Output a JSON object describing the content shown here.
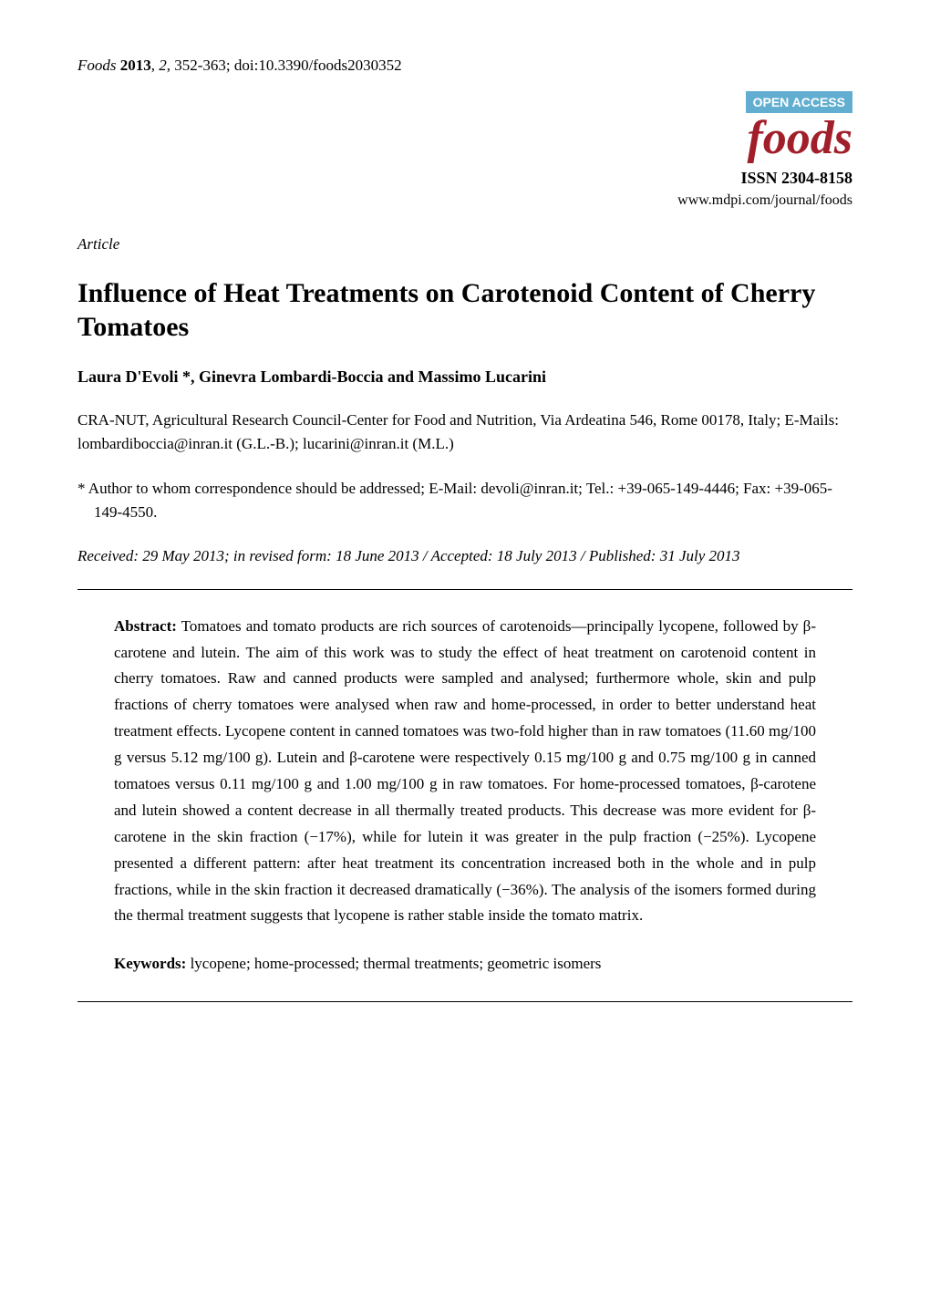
{
  "colors": {
    "background": "#ffffff",
    "text": "#000000",
    "open_access_bg": "#62aed1",
    "open_access_text": "#ffffff",
    "journal_logo": "#a11f2a",
    "rule": "#000000"
  },
  "typography": {
    "body_font": "Georgia / Times New Roman serif",
    "body_fontsize_pt": 11,
    "title_fontsize_pt": 18,
    "logo_fontsize_pt": 36,
    "line_height": 1.5
  },
  "header": {
    "journal_citation": {
      "journal_name": "Foods",
      "year": "2013",
      "volume": "2",
      "pages": "352-363",
      "doi": "doi:10.3390/foods2030352",
      "full_line_prefix": "Foods ",
      "full_line_mid": ", ",
      "full_line_rest": ", 352-363; doi:10.3390/foods2030352"
    },
    "open_access_label": "OPEN ACCESS",
    "journal_logo_text": "foods",
    "issn": "ISSN 2304-8158",
    "journal_url": "www.mdpi.com/journal/foods"
  },
  "article": {
    "type": "Article",
    "title": "Influence of Heat Treatments on Carotenoid Content of Cherry Tomatoes",
    "authors": "Laura D'Evoli *, Ginevra Lombardi-Boccia and Massimo Lucarini",
    "affiliation": "CRA-NUT, Agricultural Research Council-Center for Food and Nutrition, Via Ardeatina 546, Rome 00178, Italy; E-Mails: lombardiboccia@inran.it (G.L.-B.); lucarini@inran.it (M.L.)",
    "correspondence": "*  Author to whom correspondence should be addressed; E-Mail: devoli@inran.it; Tel.: +39-065-149-4446; Fax: +39-065-149-4550.",
    "dates": "Received: 29 May 2013; in revised form: 18 June 2013 / Accepted: 18 July 2013 / Published: 31 July 2013"
  },
  "abstract": {
    "heading": "Abstract:",
    "text": " Tomatoes and tomato products are rich sources of carotenoids—principally lycopene, followed by β-carotene and lutein. The aim of this work was to study the effect of heat treatment on carotenoid content in cherry tomatoes. Raw and canned products were sampled and analysed; furthermore whole, skin and pulp fractions of cherry tomatoes were analysed when raw and home-processed, in order to better understand heat treatment effects. Lycopene content in canned tomatoes was two-fold higher than in raw tomatoes (11.60 mg/100 g versus 5.12 mg/100 g). Lutein and β-carotene were respectively 0.15 mg/100 g and 0.75 mg/100 g in canned tomatoes versus 0.11 mg/100 g and 1.00 mg/100 g in raw tomatoes. For home-processed tomatoes, β-carotene and lutein showed a content decrease in all thermally treated products. This decrease was more evident for β-carotene in the skin fraction (−17%), while for lutein it was greater in the pulp fraction (−25%). Lycopene presented a different pattern: after heat treatment its concentration increased both in the whole and in pulp fractions, while in the skin fraction it decreased dramatically (−36%). The analysis of the isomers formed during the thermal treatment suggests that lycopene is rather stable inside the tomato matrix."
  },
  "keywords": {
    "heading": "Keywords:",
    "text": " lycopene; home-processed; thermal treatments; geometric isomers"
  }
}
